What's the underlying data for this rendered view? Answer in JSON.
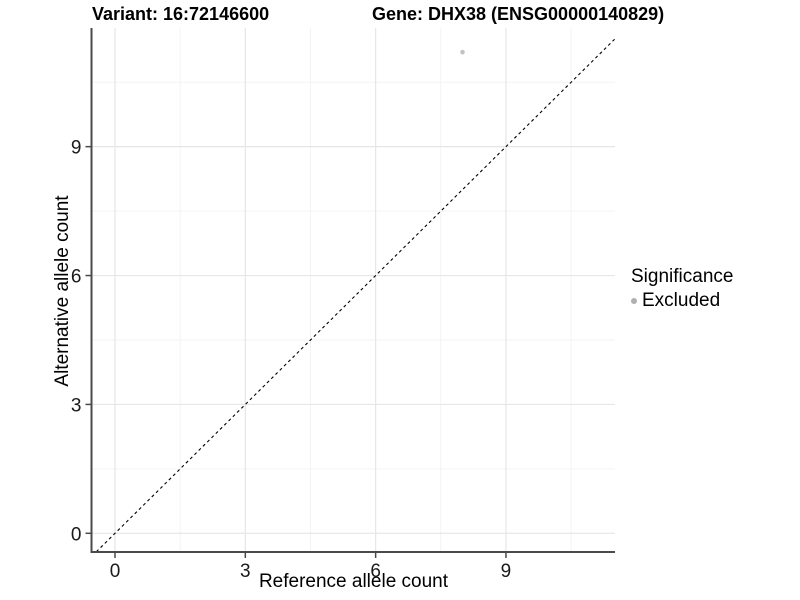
{
  "titles": {
    "left": "Variant: 16:72146600",
    "right": "Gene: DHX38 (ENSG00000140829)"
  },
  "chart_data": {
    "type": "scatter",
    "title_left": "Variant: 16:72146600",
    "title_right": "Gene: DHX38 (ENSG00000140829)",
    "xlabel": "Reference allele count",
    "ylabel": "Alternative allele count",
    "x_ticks": [
      0,
      3,
      6,
      9
    ],
    "y_ticks": [
      0,
      3,
      6,
      9
    ],
    "x_minor_ticks": [
      1.5,
      4.5,
      7.5,
      10.5
    ],
    "y_minor_ticks": [
      1.5,
      4.5,
      7.5,
      10.5
    ],
    "xlim": [
      -0.53,
      11.5
    ],
    "ylim": [
      -0.44,
      11.76
    ],
    "grid": true,
    "legend_position": "right",
    "identity_line": {
      "style": "dashed",
      "from": -0.43,
      "to": 11.5,
      "color": "#000000"
    },
    "points": [
      {
        "x": 8,
        "y": 11.2,
        "series": "Excluded",
        "color": "#c2c2c2",
        "radius": 2.3
      }
    ],
    "legend": {
      "title": "Significance",
      "items": [
        {
          "label": "Excluded",
          "color": "#b0b0b0"
        }
      ]
    },
    "colors": {
      "grid_major": "#e6e6e6",
      "grid_minor": "#f3f3f3",
      "axis": "#4a4a4a",
      "tick_text": "#1a1a1a",
      "background": "#ffffff"
    }
  }
}
